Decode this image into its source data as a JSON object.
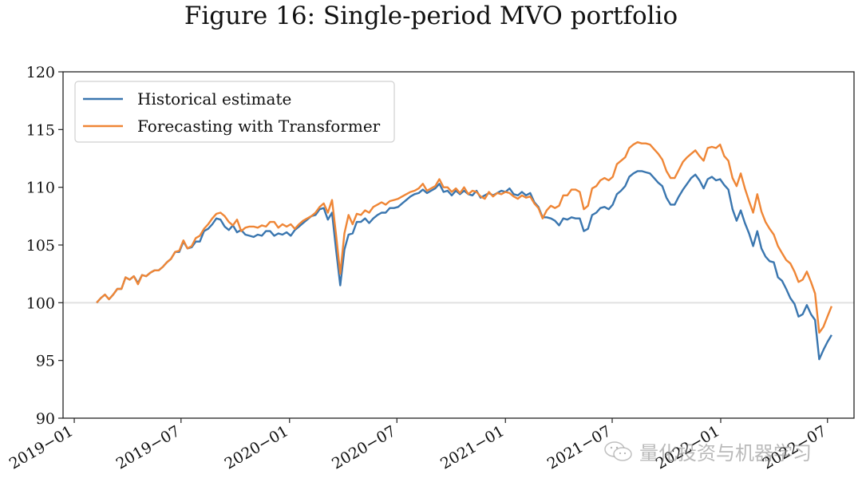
{
  "title": "Figure 16: Single-period MVO portfolio",
  "watermark": {
    "text": "量化投资与机器学习",
    "icon": "wechat-icon"
  },
  "chart_data": {
    "type": "line",
    "title": "Figure 16: Single-period MVO portfolio",
    "xlabel": "",
    "ylabel": "",
    "ylim": [
      90,
      120
    ],
    "yticks": [
      90,
      95,
      100,
      105,
      110,
      115,
      120
    ],
    "xlim": [
      "2018-12-13",
      "2022-08-15"
    ],
    "xticks": [
      "2019-01",
      "2019-07",
      "2020-01",
      "2020-07",
      "2021-01",
      "2021-07",
      "2022-01",
      "2022-07"
    ],
    "reference_line": {
      "y": 100,
      "color": "#e0e0e0"
    },
    "grid": false,
    "legend": {
      "position": "top-left"
    },
    "x_start": "2019-02-08",
    "x_step_days": 7,
    "series": [
      {
        "name": "Historical estimate",
        "color": "#3a76af",
        "values": [
          100.0,
          100.4,
          100.7,
          100.3,
          100.7,
          101.2,
          101.2,
          102.2,
          102.0,
          102.3,
          101.7,
          102.4,
          102.3,
          102.6,
          102.8,
          102.8,
          103.1,
          103.5,
          103.8,
          104.4,
          104.4,
          105.3,
          104.7,
          104.8,
          105.3,
          105.3,
          106.2,
          106.4,
          106.8,
          107.3,
          107.2,
          106.6,
          106.3,
          106.7,
          106.1,
          106.3,
          105.9,
          105.8,
          105.7,
          105.9,
          105.8,
          106.2,
          106.2,
          105.8,
          106.0,
          105.9,
          106.1,
          105.8,
          106.3,
          106.6,
          106.9,
          107.2,
          107.5,
          107.6,
          108.1,
          108.2,
          107.2,
          107.8,
          104.5,
          101.5,
          104.6,
          105.9,
          106.0,
          107.0,
          107.0,
          107.3,
          106.9,
          107.3,
          107.6,
          107.8,
          107.8,
          108.2,
          108.2,
          108.3,
          108.6,
          108.9,
          109.2,
          109.4,
          109.5,
          109.8,
          109.5,
          109.7,
          109.9,
          110.3,
          109.6,
          109.7,
          109.3,
          109.7,
          109.4,
          109.7,
          109.4,
          109.3,
          109.7,
          109.1,
          109.3,
          109.5,
          109.3,
          109.5,
          109.7,
          109.6,
          109.9,
          109.4,
          109.3,
          109.6,
          109.3,
          109.5,
          108.7,
          108.3,
          107.4,
          107.4,
          107.3,
          107.1,
          106.7,
          107.3,
          107.2,
          107.4,
          107.3,
          107.3,
          106.2,
          106.4,
          107.6,
          107.8,
          108.2,
          108.3,
          108.1,
          108.5,
          109.4,
          109.7,
          110.1,
          110.9,
          111.2,
          111.4,
          111.4,
          111.3,
          111.2,
          110.8,
          110.4,
          110.1,
          109.1,
          108.5,
          108.5,
          109.2,
          109.8,
          110.3,
          110.8,
          111.1,
          110.6,
          109.9,
          110.7,
          110.9,
          110.6,
          110.7,
          110.2,
          109.8,
          108.1,
          107.1,
          108.0,
          106.9,
          106.0,
          104.9,
          106.2,
          104.7,
          104.0,
          103.6,
          103.5,
          102.2,
          101.9,
          101.2,
          100.4,
          99.9,
          98.8,
          99.0,
          99.8,
          99.0,
          98.5,
          95.1,
          95.9,
          96.6,
          97.2
        ]
      },
      {
        "name": "Forecasting with Transformer",
        "color": "#ef8636",
        "values": [
          100.0,
          100.4,
          100.7,
          100.3,
          100.7,
          101.2,
          101.2,
          102.2,
          102.0,
          102.3,
          101.6,
          102.4,
          102.3,
          102.6,
          102.8,
          102.8,
          103.1,
          103.5,
          103.8,
          104.4,
          104.5,
          105.4,
          104.7,
          104.9,
          105.6,
          105.8,
          106.4,
          106.8,
          107.3,
          107.7,
          107.8,
          107.5,
          107.0,
          106.7,
          107.2,
          106.2,
          106.5,
          106.6,
          106.6,
          106.5,
          106.7,
          106.6,
          107.0,
          107.0,
          106.5,
          106.8,
          106.6,
          106.8,
          106.4,
          106.8,
          107.1,
          107.3,
          107.5,
          107.8,
          108.3,
          108.6,
          107.8,
          108.9,
          105.8,
          102.5,
          106.0,
          107.6,
          106.8,
          107.7,
          107.6,
          108.0,
          107.8,
          108.3,
          108.5,
          108.7,
          108.5,
          108.8,
          108.9,
          109.0,
          109.2,
          109.4,
          109.6,
          109.7,
          109.9,
          110.3,
          109.7,
          109.9,
          110.1,
          110.7,
          110.0,
          110.0,
          109.6,
          109.9,
          109.5,
          110.0,
          109.4,
          109.7,
          109.6,
          109.2,
          109.0,
          109.6,
          109.2,
          109.5,
          109.4,
          109.6,
          109.5,
          109.2,
          109.0,
          109.3,
          109.1,
          109.2,
          108.6,
          108.2,
          107.3,
          108.0,
          108.4,
          108.2,
          108.4,
          109.3,
          109.3,
          109.8,
          109.8,
          109.6,
          108.1,
          108.4,
          109.9,
          110.1,
          110.6,
          110.8,
          110.6,
          110.9,
          112.0,
          112.3,
          112.6,
          113.4,
          113.7,
          113.9,
          113.8,
          113.8,
          113.7,
          113.3,
          112.9,
          112.4,
          111.4,
          110.8,
          110.8,
          111.5,
          112.2,
          112.6,
          112.9,
          113.2,
          112.7,
          112.3,
          113.4,
          113.5,
          113.4,
          113.7,
          112.7,
          112.3,
          110.8,
          110.1,
          111.2,
          109.9,
          108.8,
          107.8,
          109.4,
          107.9,
          107.0,
          106.4,
          105.9,
          104.9,
          104.3,
          103.7,
          103.4,
          102.7,
          101.8,
          102.0,
          102.7,
          101.8,
          100.8,
          97.4,
          97.9,
          98.8,
          99.7
        ]
      }
    ]
  }
}
